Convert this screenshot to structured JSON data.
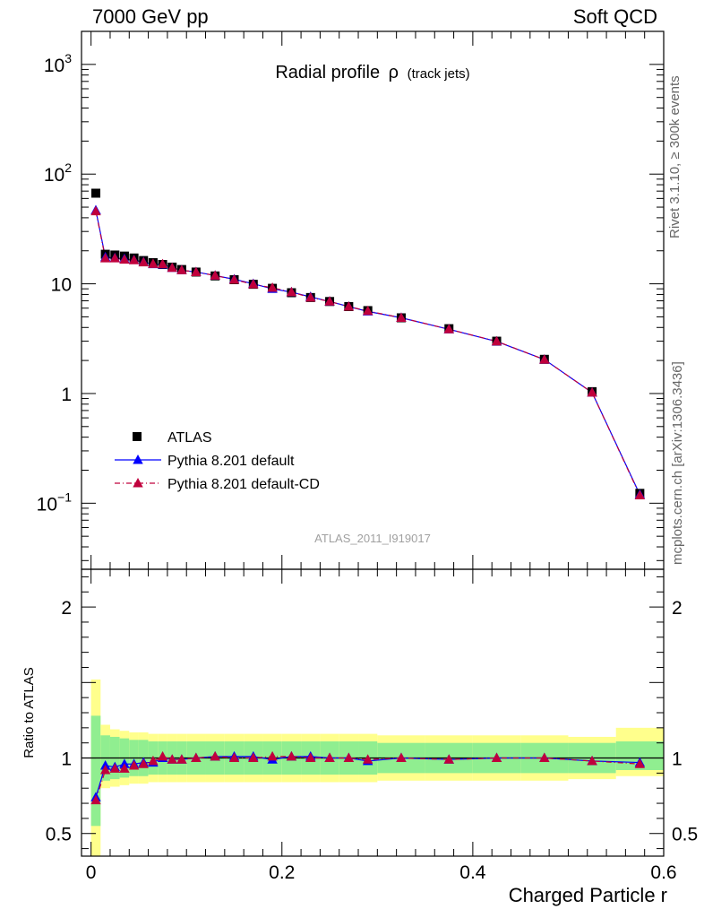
{
  "header": {
    "left": "7000 GeV pp",
    "right": "Soft QCD"
  },
  "side_labels": {
    "rivet": "Rivet 3.1.10, ≥ 300k events",
    "mcplots": "mcplots.cern.ch [arXiv:1306.3436]"
  },
  "chart_data": [
    {
      "type": "scatter",
      "title": "Radial profile",
      "title_symbol": "ρ",
      "title_suffix": "(track jets)",
      "watermark": "ATLAS_2011_I919017",
      "xlabel": "Charged Particle r",
      "ylabel": "",
      "xlim": [
        -0.01,
        0.6
      ],
      "ylim": [
        0.025,
        2000
      ],
      "yscale": "log",
      "legend_position": "lower-left",
      "yticks": [
        {
          "value": 1000,
          "label": "10",
          "exp": "3"
        },
        {
          "value": 100,
          "label": "10",
          "exp": "2"
        },
        {
          "value": 10,
          "label": "10",
          "exp": ""
        },
        {
          "value": 1,
          "label": "1",
          "exp": ""
        },
        {
          "value": 0.1,
          "label": "10",
          "exp": "−1"
        }
      ],
      "x": [
        0.005,
        0.015,
        0.025,
        0.035,
        0.045,
        0.055,
        0.065,
        0.075,
        0.085,
        0.095,
        0.11,
        0.13,
        0.15,
        0.17,
        0.19,
        0.21,
        0.23,
        0.25,
        0.27,
        0.29,
        0.325,
        0.375,
        0.425,
        0.475,
        0.525,
        0.575
      ],
      "series": [
        {
          "name": "ATLAS",
          "color": "#000000",
          "marker": "square",
          "values": [
            67.0,
            18.6,
            18.3,
            17.9,
            17.2,
            16.3,
            15.6,
            15.0,
            14.2,
            13.5,
            12.8,
            11.8,
            10.9,
            9.9,
            9.1,
            8.3,
            7.5,
            6.9,
            6.2,
            5.7,
            4.9,
            3.9,
            3.0,
            2.05,
            1.04,
            0.123
          ]
        },
        {
          "name": "Pythia 8.201 default",
          "color": "#0000ff",
          "marker": "triangle",
          "line": "solid",
          "values": [
            46.8,
            17.5,
            17.2,
            16.9,
            16.5,
            15.8,
            15.1,
            15.0,
            14.0,
            13.3,
            12.8,
            11.9,
            11.0,
            10.0,
            9.0,
            8.4,
            7.6,
            6.9,
            6.2,
            5.6,
            4.9,
            3.85,
            2.98,
            2.04,
            1.02,
            0.12
          ]
        },
        {
          "name": "Pythia 8.201 default-CD",
          "color": "#c0003c",
          "marker": "triangle",
          "line": "dashdot",
          "values": [
            45.9,
            17.1,
            17.1,
            16.6,
            16.4,
            15.7,
            15.2,
            15.1,
            14.0,
            13.3,
            12.8,
            11.9,
            10.9,
            9.9,
            9.2,
            8.4,
            7.5,
            6.9,
            6.2,
            5.65,
            4.9,
            3.85,
            2.99,
            2.04,
            1.02,
            0.118
          ]
        }
      ]
    },
    {
      "type": "scatter",
      "title": "",
      "xlabel": "Charged Particle r",
      "ylabel": "Ratio to ATLAS",
      "xlim": [
        -0.01,
        0.6
      ],
      "ylim": [
        0.35,
        2.25
      ],
      "xticks": [
        {
          "value": 0,
          "label": "0"
        },
        {
          "value": 0.2,
          "label": "0.2"
        },
        {
          "value": 0.4,
          "label": "0.4"
        },
        {
          "value": 0.6,
          "label": "0.6"
        }
      ],
      "yticks": [
        {
          "value": 2,
          "label": "2"
        },
        {
          "value": 1,
          "label": "1"
        },
        {
          "value": 0.5,
          "label": "0.5"
        }
      ],
      "band_colors": {
        "inner": "#90ee90",
        "outer": "#ffff8c"
      },
      "bins": [
        {
          "lo": 0.0,
          "hi": 0.01,
          "inner": [
            0.55,
            1.28
          ],
          "outer": [
            0.32,
            1.52
          ]
        },
        {
          "lo": 0.01,
          "hi": 0.02,
          "inner": [
            0.85,
            1.15
          ],
          "outer": [
            0.8,
            1.22
          ]
        },
        {
          "lo": 0.02,
          "hi": 0.03,
          "inner": [
            0.86,
            1.14
          ],
          "outer": [
            0.81,
            1.19
          ]
        },
        {
          "lo": 0.03,
          "hi": 0.04,
          "inner": [
            0.87,
            1.13
          ],
          "outer": [
            0.82,
            1.18
          ]
        },
        {
          "lo": 0.04,
          "hi": 0.05,
          "inner": [
            0.88,
            1.12
          ],
          "outer": [
            0.83,
            1.17
          ]
        },
        {
          "lo": 0.05,
          "hi": 0.06,
          "inner": [
            0.88,
            1.12
          ],
          "outer": [
            0.83,
            1.17
          ]
        },
        {
          "lo": 0.06,
          "hi": 0.07,
          "inner": [
            0.89,
            1.11
          ],
          "outer": [
            0.84,
            1.16
          ]
        },
        {
          "lo": 0.07,
          "hi": 0.08,
          "inner": [
            0.89,
            1.11
          ],
          "outer": [
            0.84,
            1.16
          ]
        },
        {
          "lo": 0.08,
          "hi": 0.09,
          "inner": [
            0.89,
            1.11
          ],
          "outer": [
            0.84,
            1.16
          ]
        },
        {
          "lo": 0.09,
          "hi": 0.1,
          "inner": [
            0.89,
            1.11
          ],
          "outer": [
            0.84,
            1.16
          ]
        },
        {
          "lo": 0.1,
          "hi": 0.12,
          "inner": [
            0.89,
            1.11
          ],
          "outer": [
            0.84,
            1.16
          ]
        },
        {
          "lo": 0.12,
          "hi": 0.14,
          "inner": [
            0.89,
            1.11
          ],
          "outer": [
            0.84,
            1.16
          ]
        },
        {
          "lo": 0.14,
          "hi": 0.16,
          "inner": [
            0.89,
            1.11
          ],
          "outer": [
            0.84,
            1.16
          ]
        },
        {
          "lo": 0.16,
          "hi": 0.18,
          "inner": [
            0.89,
            1.11
          ],
          "outer": [
            0.84,
            1.16
          ]
        },
        {
          "lo": 0.18,
          "hi": 0.2,
          "inner": [
            0.89,
            1.11
          ],
          "outer": [
            0.84,
            1.16
          ]
        },
        {
          "lo": 0.2,
          "hi": 0.22,
          "inner": [
            0.89,
            1.11
          ],
          "outer": [
            0.84,
            1.16
          ]
        },
        {
          "lo": 0.22,
          "hi": 0.24,
          "inner": [
            0.89,
            1.11
          ],
          "outer": [
            0.84,
            1.16
          ]
        },
        {
          "lo": 0.24,
          "hi": 0.26,
          "inner": [
            0.89,
            1.11
          ],
          "outer": [
            0.84,
            1.16
          ]
        },
        {
          "lo": 0.26,
          "hi": 0.28,
          "inner": [
            0.89,
            1.11
          ],
          "outer": [
            0.84,
            1.16
          ]
        },
        {
          "lo": 0.28,
          "hi": 0.3,
          "inner": [
            0.89,
            1.11
          ],
          "outer": [
            0.84,
            1.16
          ]
        },
        {
          "lo": 0.3,
          "hi": 0.35,
          "inner": [
            0.9,
            1.1
          ],
          "outer": [
            0.85,
            1.15
          ]
        },
        {
          "lo": 0.35,
          "hi": 0.4,
          "inner": [
            0.9,
            1.1
          ],
          "outer": [
            0.85,
            1.15
          ]
        },
        {
          "lo": 0.4,
          "hi": 0.45,
          "inner": [
            0.9,
            1.1
          ],
          "outer": [
            0.85,
            1.15
          ]
        },
        {
          "lo": 0.45,
          "hi": 0.5,
          "inner": [
            0.9,
            1.1
          ],
          "outer": [
            0.85,
            1.15
          ]
        },
        {
          "lo": 0.5,
          "hi": 0.55,
          "inner": [
            0.9,
            1.1
          ],
          "outer": [
            0.86,
            1.14
          ]
        },
        {
          "lo": 0.55,
          "hi": 0.6,
          "inner": [
            0.92,
            1.11
          ],
          "outer": [
            0.88,
            1.2
          ]
        }
      ],
      "x": [
        0.005,
        0.015,
        0.025,
        0.035,
        0.045,
        0.055,
        0.065,
        0.075,
        0.085,
        0.095,
        0.11,
        0.13,
        0.15,
        0.17,
        0.19,
        0.21,
        0.23,
        0.25,
        0.27,
        0.29,
        0.325,
        0.375,
        0.425,
        0.475,
        0.525,
        0.575
      ],
      "series": [
        {
          "name": "Pythia 8.201 default",
          "color": "#0000ff",
          "values": [
            0.74,
            0.95,
            0.94,
            0.96,
            0.96,
            0.97,
            0.97,
            1.0,
            0.99,
            0.99,
            1.0,
            1.01,
            1.01,
            1.01,
            0.99,
            1.01,
            1.01,
            1.0,
            1.0,
            0.98,
            1.0,
            0.99,
            1.0,
            1.0,
            0.98,
            0.97
          ]
        },
        {
          "name": "Pythia 8.201 default-CD",
          "color": "#c0003c",
          "values": [
            0.72,
            0.92,
            0.93,
            0.93,
            0.95,
            0.96,
            0.98,
            1.01,
            0.99,
            0.99,
            1.0,
            1.01,
            1.0,
            1.0,
            1.01,
            1.01,
            1.0,
            1.0,
            1.0,
            0.99,
            1.0,
            0.99,
            1.0,
            1.0,
            0.98,
            0.96
          ]
        }
      ]
    }
  ]
}
